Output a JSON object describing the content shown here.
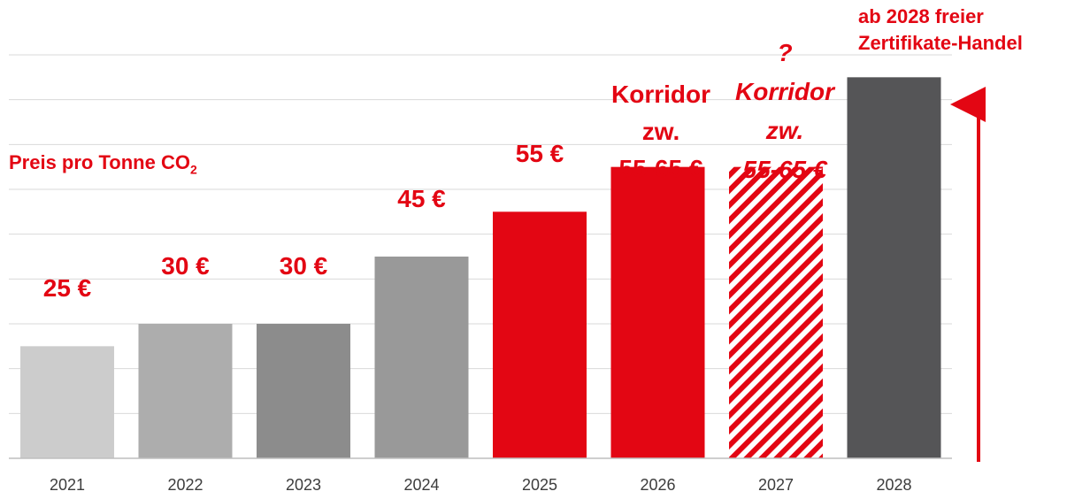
{
  "chart_data": {
    "type": "bar",
    "ylabel_prefix": "Preis pro Tonne CO",
    "ylabel_sub": "2",
    "categories": [
      "2021",
      "2022",
      "2023",
      "2024",
      "2025",
      "2026",
      "2027",
      "2028"
    ],
    "values": [
      25,
      30,
      30,
      45,
      55,
      65,
      65,
      85
    ],
    "value_labels": [
      "25 €",
      "30 €",
      "30 €",
      "45 €",
      "55 €",
      "",
      "",
      ""
    ],
    "ylim": [
      0,
      90
    ],
    "grid": true,
    "colors": [
      "#cccccc",
      "#adadad",
      "#8c8c8c",
      "#999999",
      "#e30613",
      "#e30613",
      "#e30613",
      "#555557"
    ],
    "annotations": {
      "corridor_2026": [
        "Korridor",
        "zw.",
        "55-65 €"
      ],
      "corridor_2027": {
        "question": "?",
        "lines": [
          "Korridor",
          "zw.",
          "55-65 €"
        ]
      },
      "free_trade_2028": [
        "ab 2028 freier",
        "Zertifikate-Handel"
      ]
    },
    "accent_color": "#e30613"
  }
}
